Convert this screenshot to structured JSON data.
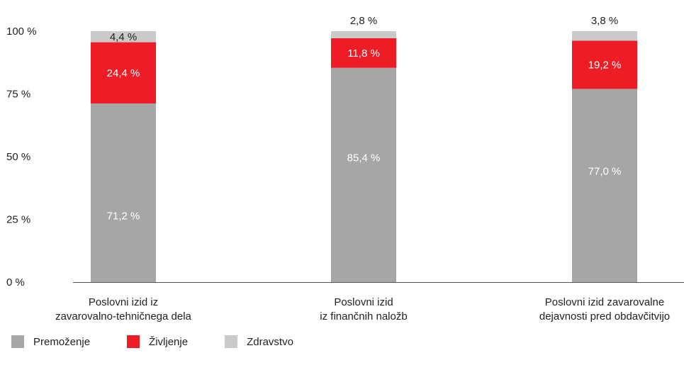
{
  "colors": {
    "premozenje": "#a6a6a8",
    "zivljenje": "#ee1c25",
    "zdravstvo": "#cacaca",
    "axis": "#555555",
    "text": "#222222",
    "label_on_dark": "#ffffff"
  },
  "chart_data": {
    "type": "bar",
    "stacked": true,
    "categories": [
      [
        "Poslovni izid iz",
        "zavarovalno-tehničnega dela"
      ],
      [
        "Poslovni izid",
        "iz finančnih naložb"
      ],
      [
        "Poslovni izid zavarovalne",
        "dejavnosti pred obdavčitvijo"
      ]
    ],
    "series": [
      {
        "name": "Premoženje",
        "values": [
          71.2,
          85.4,
          77.0
        ],
        "labels": [
          "71,2 %",
          "85,4 %",
          "77,0 %"
        ],
        "color": "#a6a6a8"
      },
      {
        "name": "Življenje",
        "values": [
          24.4,
          11.8,
          19.2
        ],
        "labels": [
          "24,4 %",
          "11,8 %",
          "19,2 %"
        ],
        "color": "#ee1c25"
      },
      {
        "name": "Zdravstvo",
        "values": [
          4.4,
          2.8,
          3.8
        ],
        "labels": [
          "4,4 %",
          "2,8 %",
          "3,8 %"
        ],
        "color": "#cacaca"
      }
    ],
    "ylim": [
      0,
      100
    ],
    "yticks": [
      0,
      25,
      50,
      75,
      100
    ],
    "ytick_labels": [
      "0 %",
      "25 %",
      "50 %",
      "75 %",
      "100 %"
    ],
    "title": "",
    "xlabel": "",
    "ylabel": "",
    "grid": false,
    "legend": "bottom-left"
  }
}
